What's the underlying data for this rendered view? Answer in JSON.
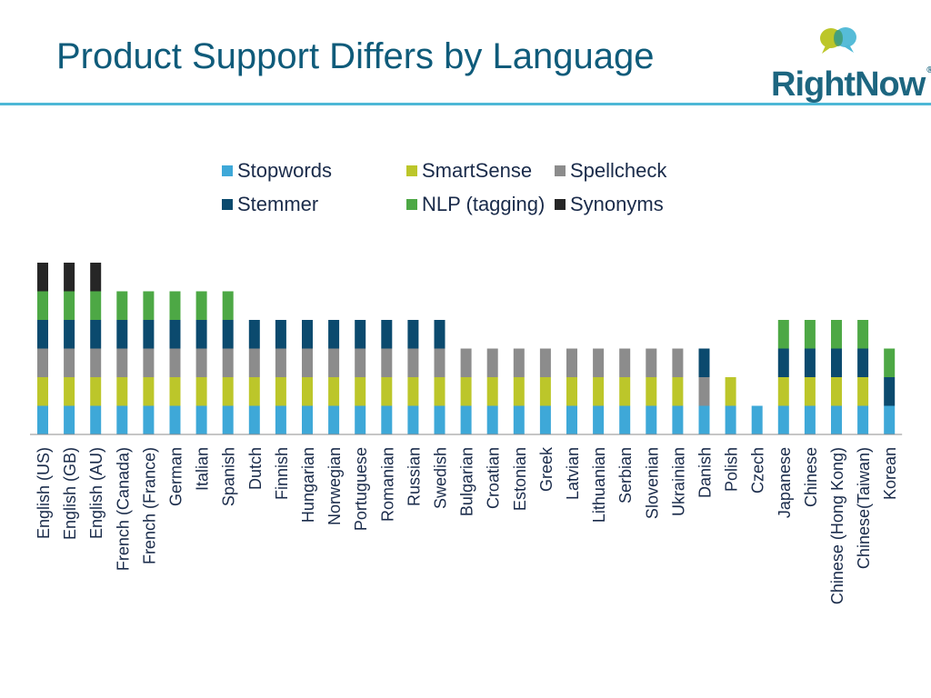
{
  "page": {
    "title": "Product Support Differs by Language",
    "logo_text": "RightNow",
    "logo_mark": "®"
  },
  "chart_data": {
    "type": "bar",
    "stacked": true,
    "title": "",
    "xlabel": "",
    "ylabel": "",
    "ylim": [
      0,
      6
    ],
    "legend_placement": "top",
    "grid": false,
    "categories": [
      "English (US)",
      "English (GB)",
      "English (AU)",
      "French (Canada)",
      "French (France)",
      "German",
      "Italian",
      "Spanish",
      "Dutch",
      "Finnish",
      "Hungarian",
      "Norwegian",
      "Portuguese",
      "Romanian",
      "Russian",
      "Swedish",
      "Bulgarian",
      "Croatian",
      "Estonian",
      "Greek",
      "Latvian",
      "Lithuanian",
      "Serbian",
      "Slovenian",
      "Ukrainian",
      "Danish",
      "Polish",
      "Czech",
      "Japanese",
      "Chinese",
      "Chinese (Hong Kong)",
      "Chinese(Taiwan)",
      "Korean"
    ],
    "series": [
      {
        "name": "Stopwords",
        "color": "#3ea8d8",
        "values": [
          1,
          1,
          1,
          1,
          1,
          1,
          1,
          1,
          1,
          1,
          1,
          1,
          1,
          1,
          1,
          1,
          1,
          1,
          1,
          1,
          1,
          1,
          1,
          1,
          1,
          1,
          1,
          1,
          1,
          1,
          1,
          1,
          1
        ]
      },
      {
        "name": "SmartSense",
        "color": "#bcc62a",
        "values": [
          1,
          1,
          1,
          1,
          1,
          1,
          1,
          1,
          1,
          1,
          1,
          1,
          1,
          1,
          1,
          1,
          1,
          1,
          1,
          1,
          1,
          1,
          1,
          1,
          1,
          0,
          1,
          0,
          1,
          1,
          1,
          1,
          0
        ]
      },
      {
        "name": "Spellcheck",
        "color": "#8c8c8c",
        "values": [
          1,
          1,
          1,
          1,
          1,
          1,
          1,
          1,
          1,
          1,
          1,
          1,
          1,
          1,
          1,
          1,
          1,
          1,
          1,
          1,
          1,
          1,
          1,
          1,
          1,
          1,
          0,
          0,
          0,
          0,
          0,
          0,
          0
        ]
      },
      {
        "name": "Stemmer",
        "color": "#0b4a6e",
        "values": [
          1,
          1,
          1,
          1,
          1,
          1,
          1,
          1,
          1,
          1,
          1,
          1,
          1,
          1,
          1,
          1,
          0,
          0,
          0,
          0,
          0,
          0,
          0,
          0,
          0,
          1,
          0,
          0,
          1,
          1,
          1,
          1,
          1
        ]
      },
      {
        "name": "NLP (tagging)",
        "color": "#4da845",
        "values": [
          1,
          1,
          1,
          1,
          1,
          1,
          1,
          1,
          0,
          0,
          0,
          0,
          0,
          0,
          0,
          0,
          0,
          0,
          0,
          0,
          0,
          0,
          0,
          0,
          0,
          0,
          0,
          0,
          1,
          1,
          1,
          1,
          1
        ]
      },
      {
        "name": "Synonyms",
        "color": "#262626",
        "values": [
          1,
          1,
          1,
          0,
          0,
          0,
          0,
          0,
          0,
          0,
          0,
          0,
          0,
          0,
          0,
          0,
          0,
          0,
          0,
          0,
          0,
          0,
          0,
          0,
          0,
          0,
          0,
          0,
          0,
          0,
          0,
          0,
          0
        ]
      }
    ]
  }
}
